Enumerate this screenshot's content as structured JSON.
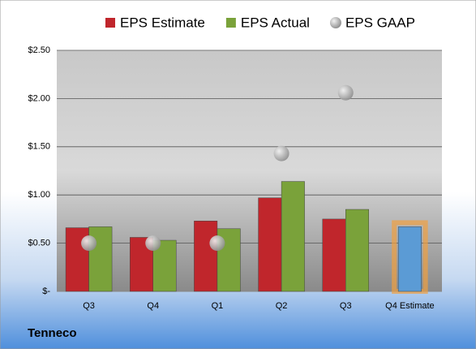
{
  "chart_data": {
    "type": "bar",
    "categories": [
      "Q3",
      "Q4",
      "Q1",
      "Q2",
      "Q3",
      "Q4 Estimate"
    ],
    "series": [
      {
        "name": "EPS Estimate",
        "color": "#c0262c",
        "values": [
          0.66,
          0.56,
          0.73,
          0.97,
          0.75,
          0.67
        ]
      },
      {
        "name": "EPS Actual",
        "color": "#7aa23a",
        "values": [
          0.67,
          0.53,
          0.65,
          1.14,
          0.85,
          null
        ]
      },
      {
        "name": "EPS GAAP",
        "color": "#a8a8a8",
        "mark": "circle",
        "values": [
          0.5,
          0.5,
          0.5,
          1.43,
          2.06,
          null
        ]
      }
    ],
    "highlight": {
      "index": 5,
      "color": "#5b9bd5",
      "glow": "#f0a040"
    },
    "ylim": [
      0,
      2.5
    ],
    "yticks": [
      {
        "value": 0,
        "label": "$-"
      },
      {
        "value": 0.5,
        "label": "$0.50"
      },
      {
        "value": 1,
        "label": "$1.00"
      },
      {
        "value": 1.5,
        "label": "$1.50"
      },
      {
        "value": 2,
        "label": "$2.00"
      },
      {
        "value": 2.5,
        "label": "$2.50"
      }
    ],
    "grid": true,
    "legend": "top",
    "footer": "Tenneco"
  }
}
